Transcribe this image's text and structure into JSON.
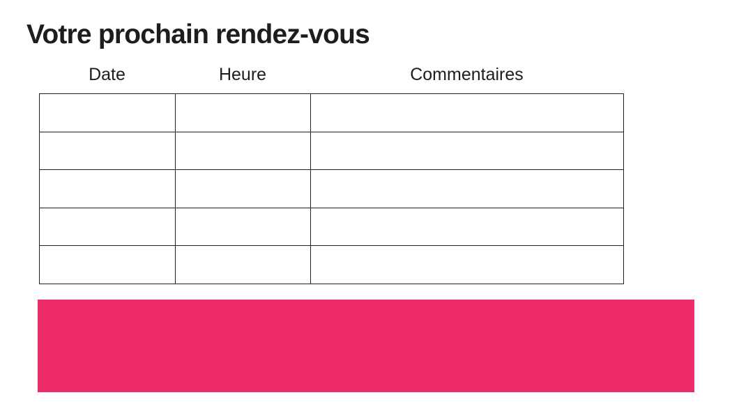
{
  "page": {
    "title": "Votre prochain rendez-vous"
  },
  "table": {
    "columns": [
      "Date",
      "Heure",
      "Commentaires"
    ],
    "rows": [
      [
        "",
        "",
        ""
      ],
      [
        "",
        "",
        ""
      ],
      [
        "",
        "",
        ""
      ],
      [
        "",
        "",
        ""
      ],
      [
        "",
        "",
        ""
      ]
    ]
  },
  "colors": {
    "accent_pink": "#ED2B68",
    "text": "#1D1D1B",
    "table_border": "#1F1F1F"
  }
}
